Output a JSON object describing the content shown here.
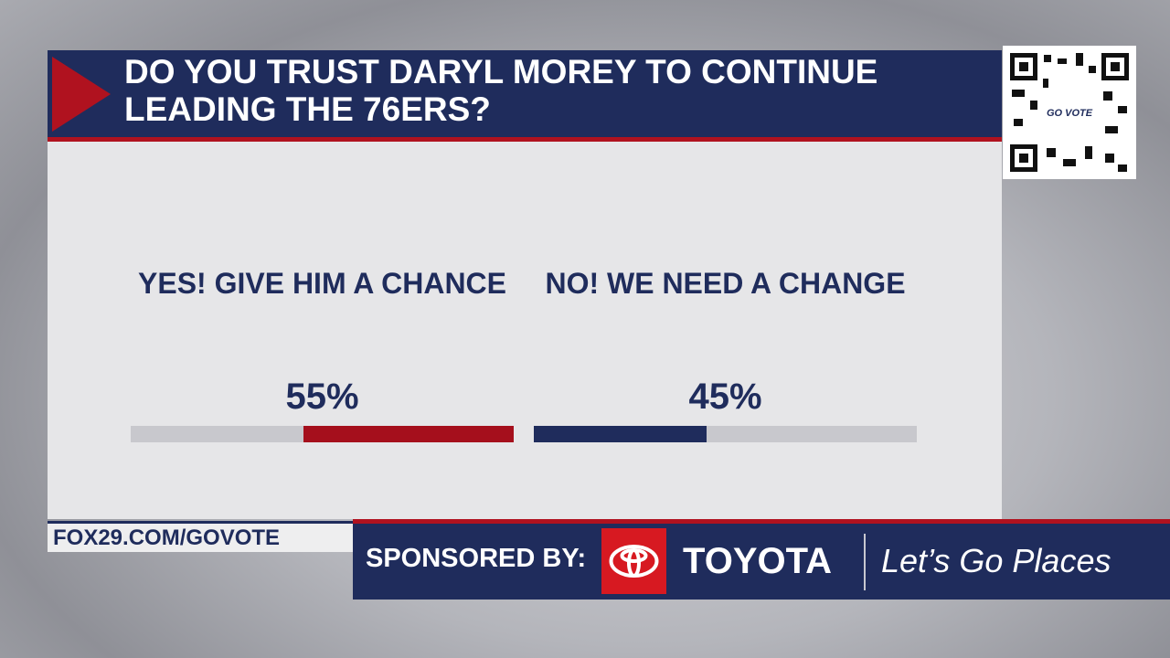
{
  "poll": {
    "question": "DO YOU TRUST DARYL MOREY TO CONTINUE LEADING THE 76ERS?",
    "options": [
      {
        "label": "YES! GIVE HIM A CHANCE",
        "value": 55,
        "value_label": "55%",
        "color": "#a50f1c",
        "fill_from": "right"
      },
      {
        "label": "NO! WE NEED A CHANGE",
        "value": 45,
        "value_label": "45%",
        "color": "#1f2c5c",
        "fill_from": "left"
      }
    ]
  },
  "qr_label": "GO VOTE",
  "footer": {
    "url": "FOX29.COM/GOVOTE",
    "sponsored_by": "SPONSORED BY:",
    "brand": "TOYOTA",
    "slogan": "Let’s Go Places"
  }
}
